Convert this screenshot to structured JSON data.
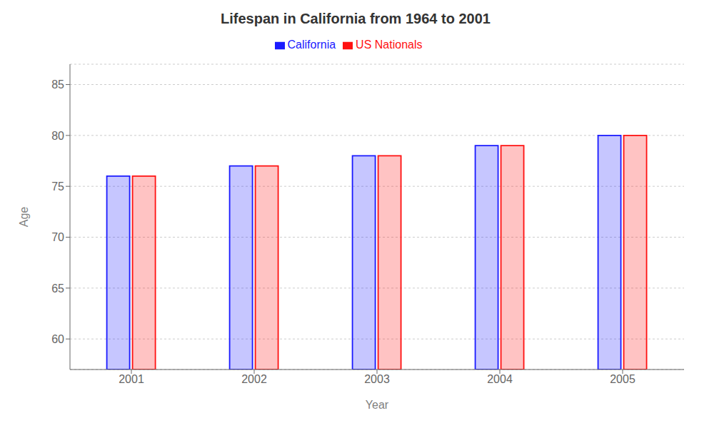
{
  "chart_data": {
    "type": "bar",
    "title": "Lifespan in California from 1964 to 2001",
    "x_label": "Year",
    "y_label": "Age",
    "categories": [
      "2001",
      "2002",
      "2003",
      "2004",
      "2005"
    ],
    "series": [
      {
        "name": "California",
        "color": "#1a1aff",
        "values": [
          76,
          77,
          78,
          79,
          80
        ]
      },
      {
        "name": "US Nationals",
        "color": "#ff1111",
        "values": [
          76,
          77,
          78,
          79,
          80
        ]
      }
    ],
    "ylim": [
      57,
      87
    ],
    "yticks": [
      60,
      65,
      70,
      75,
      80,
      85
    ],
    "grid": true,
    "legend": "top"
  }
}
